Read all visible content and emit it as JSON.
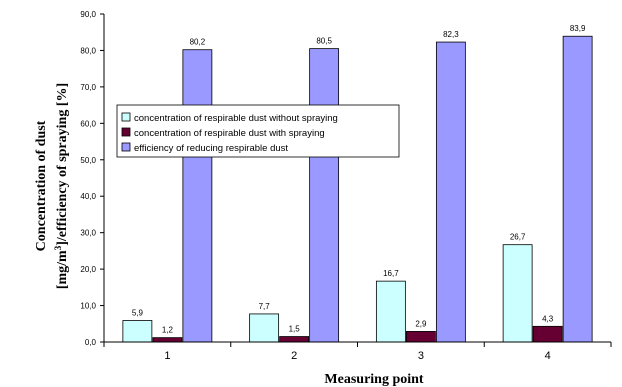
{
  "chart_data": {
    "type": "bar",
    "categories": [
      "1",
      "2",
      "3",
      "4"
    ],
    "series": [
      {
        "name": "concentration of respirable dust without spraying",
        "values": [
          5.9,
          7.7,
          16.7,
          26.7
        ],
        "labels": [
          "5,9",
          "7,7",
          "16,7",
          "26,7"
        ],
        "color": "#CCFFFF"
      },
      {
        "name": "concentration of respirable dust with spraying",
        "values": [
          1.2,
          1.5,
          2.9,
          4.3
        ],
        "labels": [
          "1,2",
          "1,5",
          "2,9",
          "4,3"
        ],
        "color": "#660033"
      },
      {
        "name": "efficiency of reducing respirable dust",
        "values": [
          80.2,
          80.5,
          82.3,
          83.9
        ],
        "labels": [
          "80,2",
          "80,5",
          "82,3",
          "83,9"
        ],
        "color": "#9999FF"
      }
    ],
    "xlabel": "Measuring point",
    "ylabel_line1": "Concentration of dust",
    "ylabel_line2_pre": "[mg/m",
    "ylabel_line2_sup": "3",
    "ylabel_line2_post": "]/efficiency of spraying [%]",
    "ylim": [
      0,
      90
    ],
    "yticks": [
      0,
      10,
      20,
      30,
      40,
      50,
      60,
      70,
      80,
      90
    ],
    "ytick_labels": [
      "0,0",
      "10,0",
      "20,0",
      "30,0",
      "40,0",
      "50,0",
      "60,0",
      "70,0",
      "80,0",
      "90,0"
    ],
    "legend_position": "center-left",
    "grid": false
  }
}
